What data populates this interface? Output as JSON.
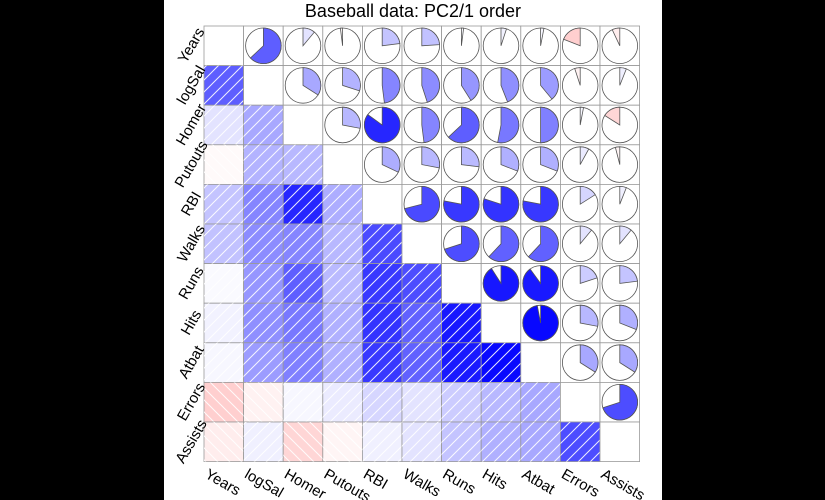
{
  "chart_data": {
    "type": "heatmap",
    "title": "Baseball data: PC2/1 order",
    "variables": [
      "Years",
      "logSal",
      "Homer",
      "Putouts",
      "RBI",
      "Walks",
      "Runs",
      "Hits",
      "Atbat",
      "Errors",
      "Assists"
    ],
    "lower_panel": "shade",
    "upper_panel": "pie",
    "diagonal": "blank",
    "color_scale": {
      "negative": "#ff0000",
      "positive": "#0000ff",
      "neutral": "#ffffff"
    },
    "correlations": [
      [
        1.0,
        0.63,
        0.11,
        -0.02,
        0.23,
        0.24,
        0.02,
        0.05,
        0.03,
        -0.19,
        -0.07
      ],
      [
        0.63,
        1.0,
        0.34,
        0.3,
        0.48,
        0.45,
        0.41,
        0.44,
        0.39,
        -0.05,
        0.06
      ],
      [
        0.11,
        0.34,
        1.0,
        0.28,
        0.85,
        0.48,
        0.63,
        0.53,
        0.5,
        0.03,
        -0.16
      ],
      [
        -0.02,
        0.3,
        0.28,
        1.0,
        0.32,
        0.28,
        0.27,
        0.31,
        0.31,
        0.08,
        -0.04
      ],
      [
        0.23,
        0.48,
        0.85,
        0.32,
        1.0,
        0.71,
        0.78,
        0.8,
        0.78,
        0.16,
        0.06
      ],
      [
        0.24,
        0.45,
        0.48,
        0.28,
        0.71,
        1.0,
        0.7,
        0.62,
        0.62,
        0.11,
        0.11
      ],
      [
        0.02,
        0.41,
        0.63,
        0.27,
        0.78,
        0.7,
        1.0,
        0.91,
        0.9,
        0.2,
        0.23
      ],
      [
        0.05,
        0.44,
        0.53,
        0.31,
        0.8,
        0.62,
        0.91,
        1.0,
        0.97,
        0.28,
        0.31
      ],
      [
        0.03,
        0.39,
        0.5,
        0.31,
        0.78,
        0.62,
        0.9,
        0.97,
        1.0,
        0.34,
        0.34
      ],
      [
        -0.19,
        -0.05,
        0.03,
        0.08,
        0.16,
        0.11,
        0.2,
        0.28,
        0.34,
        1.0,
        0.7
      ],
      [
        -0.07,
        0.06,
        -0.16,
        -0.04,
        0.06,
        0.11,
        0.23,
        0.31,
        0.34,
        0.7,
        1.0
      ]
    ]
  }
}
